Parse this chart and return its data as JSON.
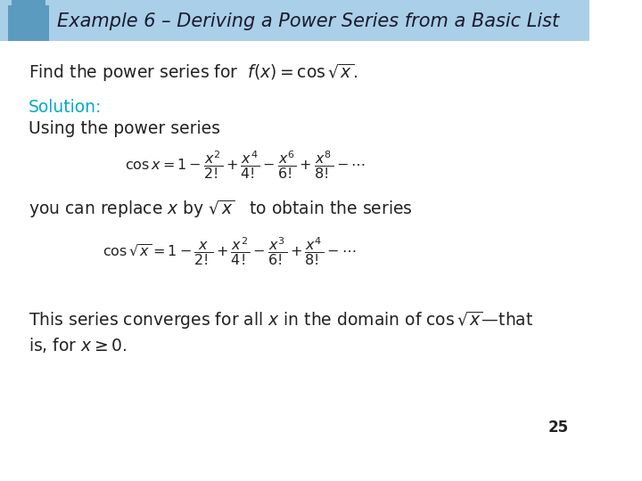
{
  "title": "Example 6 – Deriving a Power Series from a Basic List",
  "title_color": "#1a1a2e",
  "header_bg_color": "#aacfe8",
  "tab_color": "#5b9bbf",
  "bg_color": "#ffffff",
  "solution_color": "#00aacc",
  "body_color": "#222222",
  "slide_number": "25"
}
